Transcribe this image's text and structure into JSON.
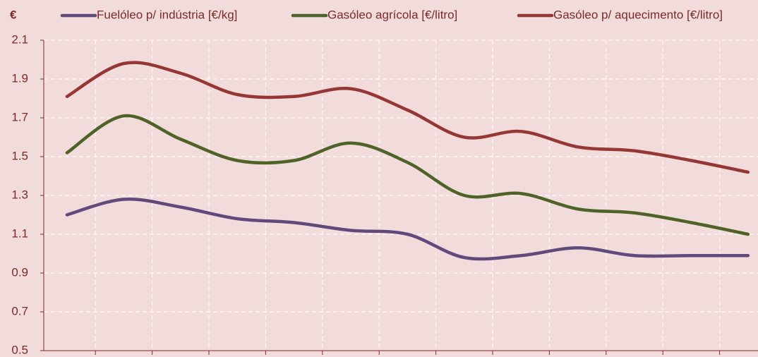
{
  "chart_data": {
    "type": "line",
    "y_label": "€",
    "categories": [
      null,
      null,
      null,
      null,
      null,
      null,
      null,
      null,
      null,
      null,
      null,
      null,
      null
    ],
    "series": [
      {
        "name": "Fuelóleo p/ indústria [€/kg]",
        "color": "#604a7b",
        "values": [
          1.2,
          1.28,
          1.24,
          1.18,
          1.16,
          1.12,
          1.1,
          0.98,
          0.99,
          1.03,
          0.99,
          0.99,
          0.99
        ]
      },
      {
        "name": "Gasóleo agrícola [€/litro]",
        "color": "#4f6228",
        "values": [
          1.52,
          1.71,
          1.59,
          1.48,
          1.48,
          1.57,
          1.47,
          1.3,
          1.31,
          1.23,
          1.21,
          1.16,
          1.1
        ]
      },
      {
        "name": "Gasóleo p/ aquecimento [€/litro]",
        "color": "#953735",
        "values": [
          1.81,
          1.98,
          1.93,
          1.82,
          1.81,
          1.85,
          1.74,
          1.6,
          1.63,
          1.55,
          1.53,
          1.48,
          1.42
        ]
      }
    ],
    "ylim": [
      0.5,
      2.1
    ],
    "yticks": [
      0.5,
      0.7,
      0.9,
      1.1,
      1.3,
      1.5,
      1.7,
      1.9,
      2.1
    ],
    "grid": true
  }
}
